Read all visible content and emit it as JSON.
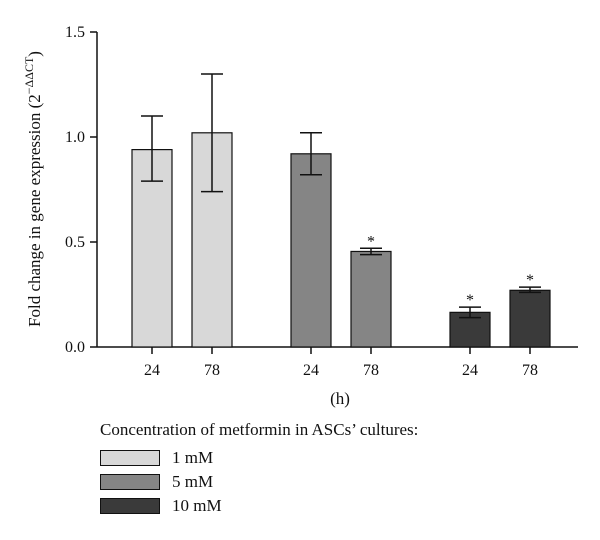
{
  "chart_data": {
    "type": "bar",
    "ylabel": "Fold change in gene expression (2",
    "ylabel_exponent": "−ΔΔCT",
    "ylabel_close": ")",
    "xlabel": "(h)",
    "ylim": [
      0,
      1.5
    ],
    "yticks": [
      "0.0",
      "0.5",
      "1.0",
      "1.5"
    ],
    "groups": [
      {
        "name": "1 mM",
        "color": "#d8d8d8",
        "bars": [
          {
            "x": "24",
            "value": 0.94,
            "err_low": 0.79,
            "err_high": 1.1,
            "sig": ""
          },
          {
            "x": "78",
            "value": 1.02,
            "err_low": 0.74,
            "err_high": 1.3,
            "sig": ""
          }
        ]
      },
      {
        "name": "5 mM",
        "color": "#858585",
        "bars": [
          {
            "x": "24",
            "value": 0.92,
            "err_low": 0.82,
            "err_high": 1.02,
            "sig": ""
          },
          {
            "x": "78",
            "value": 0.455,
            "err_low": 0.44,
            "err_high": 0.47,
            "sig": "*"
          }
        ]
      },
      {
        "name": "10 mM",
        "color": "#3a3a3a",
        "bars": [
          {
            "x": "24",
            "value": 0.165,
            "err_low": 0.14,
            "err_high": 0.19,
            "sig": "*"
          },
          {
            "x": "78",
            "value": 0.27,
            "err_low": 0.26,
            "err_high": 0.285,
            "sig": "*"
          }
        ]
      }
    ],
    "legend_title": "Concentration of metformin in ASCs’ cultures:",
    "legend_position": "bottom-left"
  }
}
